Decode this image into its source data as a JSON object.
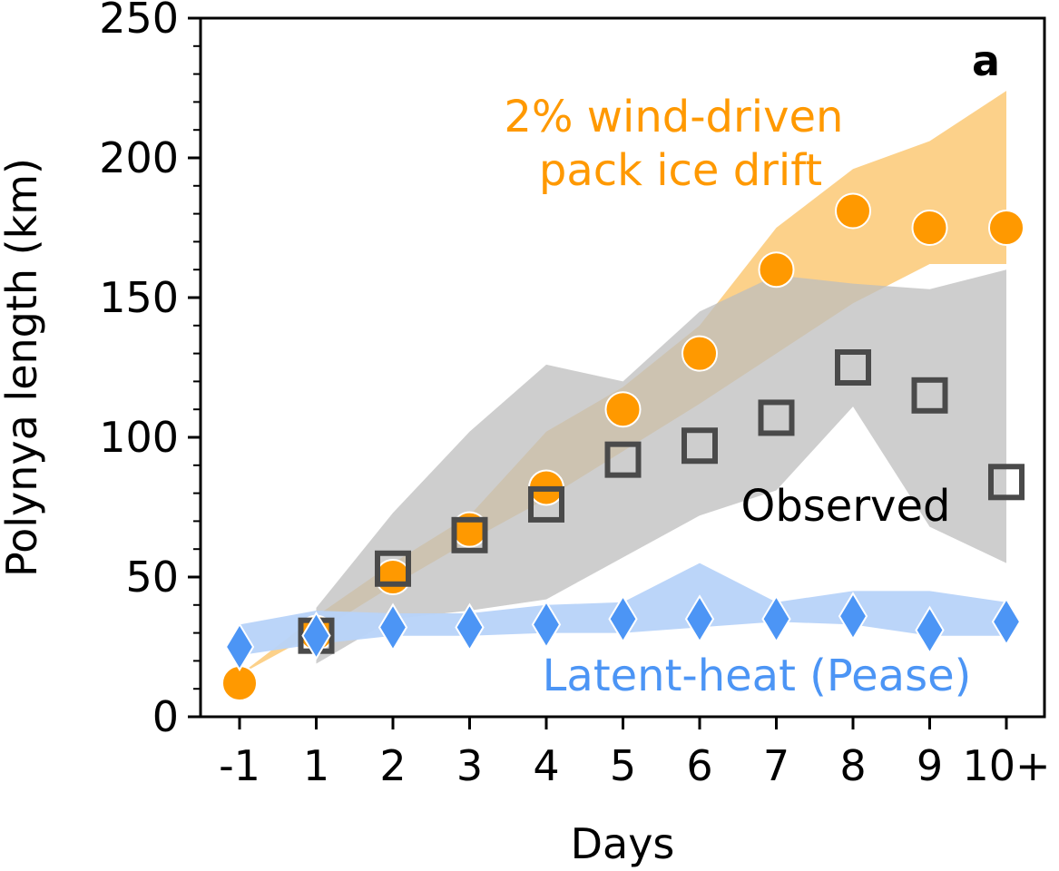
{
  "chart_data": {
    "type": "scatter",
    "panel_label": "a",
    "xlabel": "Days",
    "ylabel": "Polynya length (km)",
    "categories": [
      "-1",
      "1",
      "2",
      "3",
      "4",
      "5",
      "6",
      "7",
      "8",
      "9",
      "10+"
    ],
    "ylim": [
      0,
      250
    ],
    "yticks": [
      "0",
      "50",
      "100",
      "150",
      "200",
      "250"
    ],
    "grid": false,
    "series": [
      {
        "name": "2% wind-driven pack ice drift",
        "label_lines": [
          "2% wind-driven",
          "pack ice drift"
        ],
        "marker": "circle",
        "color": "#FF9900",
        "band_color": "#FCD18A",
        "values": [
          12,
          30,
          50,
          67,
          82,
          110,
          130,
          160,
          181,
          175,
          175
        ],
        "band_low": [
          15,
          30,
          47,
          63,
          78,
          95,
          112,
          130,
          148,
          162,
          162
        ],
        "band_high": [
          15,
          36,
          55,
          72,
          102,
          118,
          140,
          175,
          196,
          206,
          224
        ]
      },
      {
        "name": "Observed",
        "label_lines": [
          "Observed"
        ],
        "marker": "square",
        "color": "#4A4A4A",
        "band_color": "#BDBDBD",
        "values": [
          null,
          29,
          53,
          65,
          76,
          92,
          97,
          107,
          125,
          115,
          84
        ],
        "band_low": [
          null,
          19,
          35,
          38,
          42,
          57,
          72,
          81,
          111,
          68,
          55
        ],
        "band_high": [
          null,
          39,
          73,
          102,
          126,
          120,
          145,
          158,
          155,
          153,
          160
        ]
      },
      {
        "name": "Latent-heat (Pease)",
        "label_lines": [
          "Latent-heat (Pease)"
        ],
        "marker": "diamond",
        "color": "#4C95F5",
        "band_color": "#B7D3F9",
        "values": [
          25,
          29,
          32,
          32,
          33,
          35,
          35,
          35,
          36,
          31,
          34
        ],
        "band_low": [
          22,
          26,
          29,
          29,
          30,
          30,
          32,
          34,
          33,
          29,
          29
        ],
        "band_high": [
          33,
          38,
          37,
          37,
          40,
          41,
          55,
          41,
          45,
          45,
          41
        ]
      }
    ]
  }
}
